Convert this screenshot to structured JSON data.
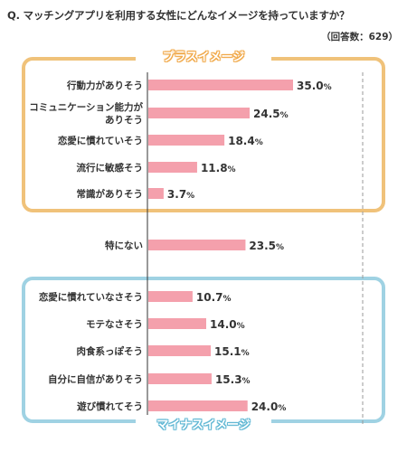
{
  "title": "Q. マッチングアプリを利用する女性にどんなイメージを持っていますか？",
  "subtitle": "（回答数：629）",
  "groups": {
    "plus_label": "プラスイメージ",
    "minus_label": "マイナスイメージ"
  },
  "colors": {
    "bar": "#f4a0ac",
    "plus_frame": "#f0c27a",
    "minus_frame": "#9fd2e3",
    "axis": "#333333",
    "guide": "#999999"
  },
  "chart_data": {
    "type": "bar",
    "orientation": "horizontal",
    "categories": [
      "行動力がありそう",
      "コミュニケーション能力が\nありそう",
      "恋愛に慣れていそう",
      "流行に敏感そう",
      "常識がありそう",
      "特にない",
      "恋愛に慣れていなさそう",
      "モテなさそう",
      "肉食系っぽそう",
      "自分に自信がありそう",
      "遊び慣れてそう"
    ],
    "values": [
      35.0,
      24.5,
      18.4,
      11.8,
      3.7,
      23.5,
      10.7,
      14.0,
      15.1,
      15.3,
      24.0
    ],
    "value_labels": [
      "35.0%",
      "24.5%",
      "18.4%",
      "11.8%",
      "3.7%",
      "23.5%",
      "10.7%",
      "14.0%",
      "15.1%",
      "15.3%",
      "24.0%"
    ],
    "unit": "%",
    "xlim": [
      0,
      50
    ],
    "legend": "none",
    "grid": false
  }
}
